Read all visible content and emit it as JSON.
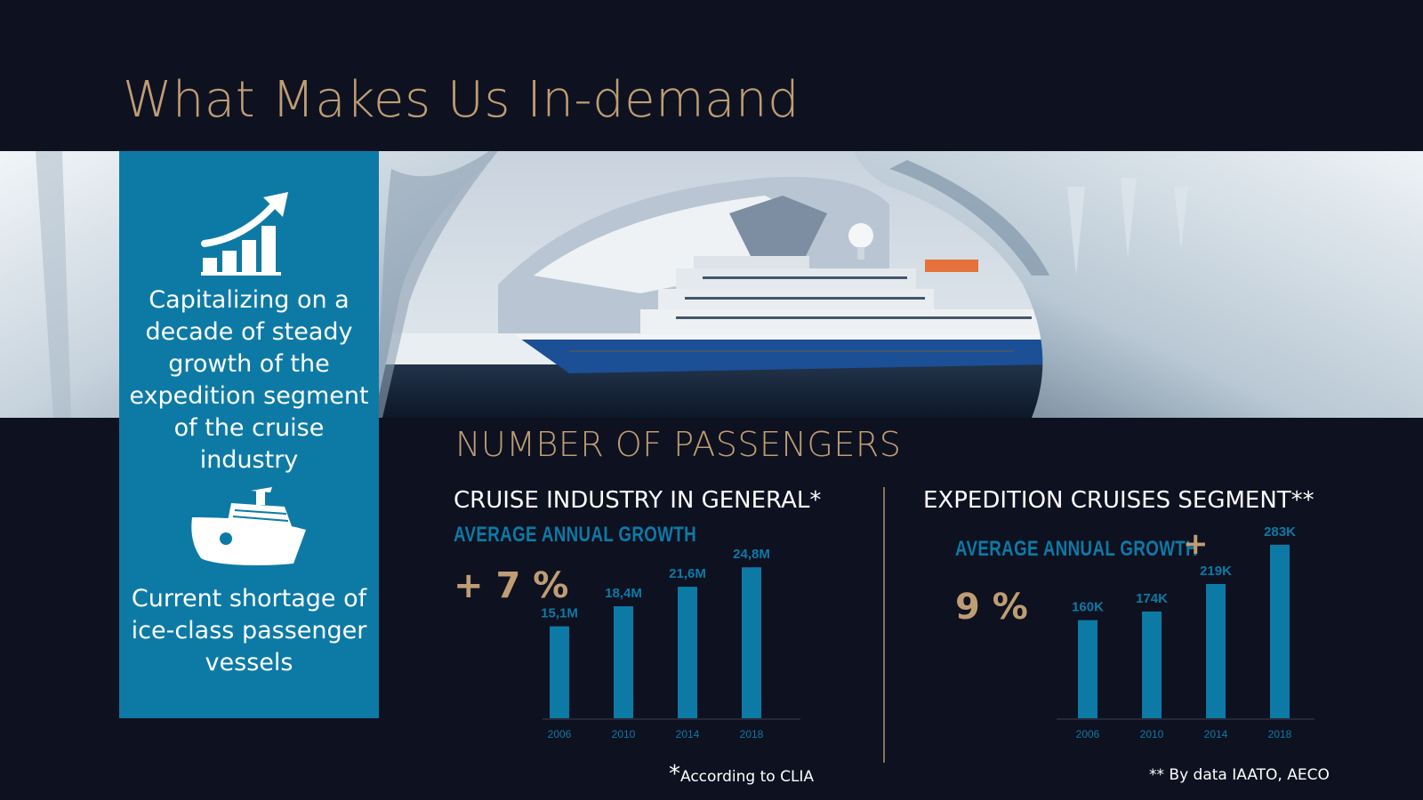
{
  "page": {
    "title": "What Makes Us In-demand"
  },
  "panel": {
    "point1": "Capitalizing on a decade of steady growth of the expedition segment of the cruise industry",
    "point2": "Current shortage of ice-class passenger vessels",
    "icons": [
      "growth-chart-icon",
      "ice-breaker-ship-icon"
    ]
  },
  "section": {
    "title": "NUMBER OF PASSENGERS"
  },
  "colors": {
    "background": "#0e1120",
    "accent_gold": "#bf9d73",
    "accent_blue": "#0d7aa6"
  },
  "chart_data": [
    {
      "type": "bar",
      "heading": "CRUISE INDUSTRY  IN GENERAL*",
      "growth_label": "AVERAGE ANNUAL GROWTH",
      "growth_value": "+ 7 %",
      "categories": [
        "2006",
        "2010",
        "2014",
        "2018"
      ],
      "values": [
        15.1,
        18.4,
        21.6,
        24.8
      ],
      "data_labels": [
        "15,1M",
        "18,4M",
        "21,6M",
        "24,8M"
      ],
      "ylim": [
        0,
        26
      ],
      "note_star": "*",
      "note": "According to CLIA"
    },
    {
      "type": "bar",
      "heading": "EXPEDITION CRUISES  SEGMENT**",
      "growth_label": "AVERAGE  ANNUAL  GROWTH",
      "growth_plus": "+",
      "growth_value": "9 %",
      "categories": [
        "2006",
        "2010",
        "2014",
        "2018"
      ],
      "values": [
        160,
        174,
        219,
        283
      ],
      "data_labels": [
        "160K",
        "174K",
        "219K",
        "283K"
      ],
      "ylim": [
        0,
        290
      ],
      "note": "** By data IAATO, AECO"
    }
  ]
}
